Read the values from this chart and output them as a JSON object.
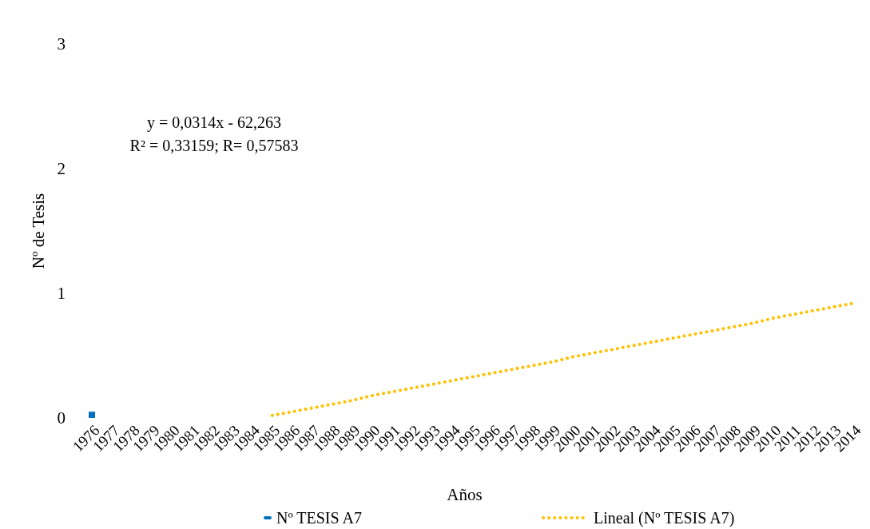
{
  "chart_data": {
    "type": "bar",
    "xlabel": "Años",
    "ylabel": "Nº de Tesis",
    "categories": [
      "1976",
      "1977",
      "1978",
      "1979",
      "1980",
      "1981",
      "1982",
      "1983",
      "1984",
      "1985",
      "1986",
      "1987",
      "1988",
      "1989",
      "1990",
      "1991",
      "1992",
      "1993",
      "1994",
      "1995",
      "1996",
      "1997",
      "1998",
      "1999",
      "2000",
      "2001",
      "2002",
      "2003",
      "2004",
      "2005",
      "2006",
      "2007",
      "2008",
      "2009",
      "2010",
      "2011",
      "2012",
      "2013",
      "2014"
    ],
    "series": [
      {
        "name": "Nº TESIS A7",
        "color": "#0070c0",
        "values": [
          0.05,
          null,
          null,
          null,
          null,
          null,
          null,
          null,
          null,
          null,
          null,
          null,
          null,
          null,
          null,
          null,
          null,
          null,
          null,
          null,
          null,
          null,
          null,
          null,
          null,
          null,
          null,
          null,
          null,
          null,
          null,
          null,
          null,
          null,
          null,
          null,
          null,
          null,
          null
        ]
      },
      {
        "name": "Lineal (Nº TESIS A7)",
        "type": "line",
        "color": "#ffc000",
        "line_style": "dotted",
        "values": [
          null,
          null,
          null,
          null,
          null,
          null,
          null,
          null,
          null,
          0.02,
          0.05,
          0.08,
          0.11,
          0.14,
          0.18,
          0.21,
          0.24,
          0.27,
          0.3,
          0.33,
          0.36,
          0.39,
          0.42,
          0.45,
          0.49,
          0.52,
          0.55,
          0.58,
          0.61,
          0.64,
          0.67,
          0.7,
          0.73,
          0.76,
          0.8,
          0.83,
          0.86,
          0.89,
          0.92
        ]
      }
    ],
    "ylim": [
      0,
      3
    ],
    "yticks": [
      0,
      1,
      2,
      3
    ],
    "grid": false,
    "legend": "bottom",
    "annotations": [
      "y = 0,0314x - 62,263",
      "R² = 0,33159; R= 0,57583"
    ]
  }
}
